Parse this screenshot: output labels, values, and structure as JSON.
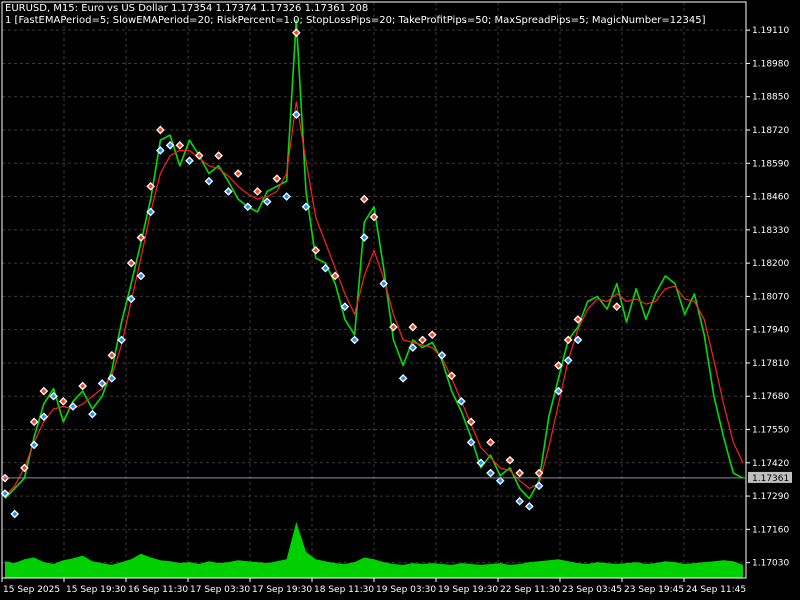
{
  "window": {
    "header_line1": "EURUSD, M15:  Euro vs US Dollar  1.17354 1.17374 1.17326 1.17361  208",
    "header_line2": "1 [FastEMAPeriod=5; SlowEMAPeriod=20; RiskPercent=1.0; StopLossPips=20; TakeProfitPips=50; MaxSpreadPips=5; MagicNumber=12345]"
  },
  "colors": {
    "background": "#000000",
    "grid": "#3a3a3a",
    "price_line": "#00e000",
    "ema_line": "#ff2020",
    "volume": "#00d000",
    "buy_marker": "#1e90ff",
    "sell_marker": "#ff4020",
    "bid_line": "#8a8ea8",
    "price_tag": "#c0c0c0"
  },
  "chart_data": {
    "type": "line",
    "symbol": "EURUSD",
    "timeframe": "M15",
    "description": "Euro vs US Dollar",
    "ohlc_current": {
      "open": 1.17354,
      "high": 1.17374,
      "low": 1.17326,
      "close": 1.17361,
      "volume": 208
    },
    "current_price_label": "1.17361",
    "current_price": 1.17361,
    "ylim": [
      1.1697,
      1.1922
    ],
    "y_ticks": [
      1.1911,
      1.1898,
      1.1885,
      1.1872,
      1.1859,
      1.1846,
      1.1833,
      1.182,
      1.1807,
      1.1794,
      1.1781,
      1.1768,
      1.1755,
      1.1742,
      1.1729,
      1.1716,
      1.1703
    ],
    "y_tick_labels": [
      "1.19110",
      "1.18980",
      "1.18850",
      "1.18720",
      "1.18590",
      "1.18460",
      "1.18330",
      "1.18200",
      "1.18070",
      "1.17940",
      "1.17810",
      "1.17680",
      "1.17550",
      "1.17420",
      "1.17290",
      "1.17160",
      "1.17030"
    ],
    "x_tick_labels": [
      "15 Sep 2025",
      "15 Sep 19:30",
      "16 Sep 11:30",
      "17 Sep 03:30",
      "17 Sep 19:30",
      "18 Sep 11:30",
      "19 Sep 03:30",
      "19 Sep 19:30",
      "22 Sep 11:30",
      "23 Sep 03:45",
      "23 Sep 19:45",
      "24 Sep 11:45"
    ],
    "grid": true,
    "series": [
      {
        "key": "price",
        "values": [
          1.1728,
          1.1732,
          1.1736,
          1.1752,
          1.1765,
          1.1771,
          1.1758,
          1.1766,
          1.177,
          1.1763,
          1.1768,
          1.1778,
          1.1797,
          1.1812,
          1.1828,
          1.1845,
          1.1868,
          1.187,
          1.1858,
          1.1868,
          1.1862,
          1.1855,
          1.1858,
          1.1852,
          1.1845,
          1.1842,
          1.184,
          1.1848,
          1.185,
          1.1852,
          1.1915,
          1.1848,
          1.1822,
          1.182,
          1.1812,
          1.1798,
          1.1792,
          1.1836,
          1.1842,
          1.1818,
          1.179,
          1.178,
          1.179,
          1.1787,
          1.1789,
          1.1782,
          1.177,
          1.1762,
          1.1752,
          1.174,
          1.1745,
          1.1737,
          1.174,
          1.1732,
          1.1728,
          1.1735,
          1.176,
          1.1775,
          1.179,
          1.1795,
          1.1805,
          1.1807,
          1.1802,
          1.1812,
          1.1797,
          1.181,
          1.1798,
          1.1808,
          1.1815,
          1.1812,
          1.18,
          1.1808,
          1.1792,
          1.1768,
          1.1752,
          1.1738,
          1.1736
        ]
      },
      {
        "key": "ema",
        "values": [
          1.1729,
          1.1733,
          1.174,
          1.175,
          1.1758,
          1.1763,
          1.1764,
          1.1763,
          1.1765,
          1.1768,
          1.1771,
          1.1776,
          1.1788,
          1.1805,
          1.1822,
          1.184,
          1.1855,
          1.1862,
          1.1864,
          1.1864,
          1.1861,
          1.1858,
          1.1857,
          1.1854,
          1.185,
          1.1847,
          1.1845,
          1.1846,
          1.1848,
          1.1855,
          1.1883,
          1.186,
          1.1838,
          1.1828,
          1.1818,
          1.1808,
          1.18,
          1.1815,
          1.1825,
          1.1814,
          1.18,
          1.179,
          1.1789,
          1.1788,
          1.1787,
          1.1783,
          1.1775,
          1.1766,
          1.1757,
          1.1748,
          1.1744,
          1.174,
          1.1739,
          1.1735,
          1.1732,
          1.1734,
          1.1748,
          1.1765,
          1.1782,
          1.1794,
          1.1802,
          1.1806,
          1.1805,
          1.1808,
          1.1805,
          1.1806,
          1.1804,
          1.1805,
          1.181,
          1.1811,
          1.1806,
          1.1805,
          1.1798,
          1.1782,
          1.1765,
          1.175,
          1.1742
        ]
      }
    ],
    "volume": [
      18,
      16,
      20,
      22,
      17,
      15,
      19,
      21,
      24,
      18,
      16,
      14,
      17,
      20,
      26,
      22,
      19,
      18,
      16,
      17,
      15,
      18,
      16,
      17,
      19,
      18,
      17,
      16,
      18,
      20,
      60,
      28,
      20,
      18,
      16,
      15,
      17,
      22,
      20,
      17,
      15,
      14,
      16,
      15,
      16,
      15,
      14,
      16,
      15,
      14,
      15,
      16,
      14,
      15,
      17,
      18,
      19,
      20,
      18,
      16,
      15,
      17,
      16,
      15,
      16,
      17,
      15,
      16,
      18,
      17,
      15,
      16,
      17,
      18,
      19,
      18,
      14
    ],
    "signals": {
      "buy": [
        [
          0,
          1.173
        ],
        [
          1,
          1.1722
        ],
        [
          3,
          1.1749
        ],
        [
          4,
          1.176
        ],
        [
          5,
          1.1768
        ],
        [
          7,
          1.1764
        ],
        [
          9,
          1.1761
        ],
        [
          10,
          1.1773
        ],
        [
          11,
          1.1775
        ],
        [
          12,
          1.179
        ],
        [
          13,
          1.1806
        ],
        [
          14,
          1.1815
        ],
        [
          15,
          1.184
        ],
        [
          16,
          1.1864
        ],
        [
          17,
          1.1866
        ],
        [
          19,
          1.186
        ],
        [
          21,
          1.1852
        ],
        [
          23,
          1.1848
        ],
        [
          25,
          1.1842
        ],
        [
          27,
          1.1844
        ],
        [
          29,
          1.1846
        ],
        [
          30,
          1.1878
        ],
        [
          31,
          1.1842
        ],
        [
          33,
          1.1818
        ],
        [
          35,
          1.1803
        ],
        [
          36,
          1.179
        ],
        [
          37,
          1.183
        ],
        [
          39,
          1.1812
        ],
        [
          41,
          1.1775
        ],
        [
          42,
          1.1787
        ],
        [
          45,
          1.1784
        ],
        [
          47,
          1.1766
        ],
        [
          48,
          1.175
        ],
        [
          49,
          1.1742
        ],
        [
          50,
          1.1738
        ],
        [
          51,
          1.1735
        ],
        [
          53,
          1.1727
        ],
        [
          54,
          1.1725
        ],
        [
          55,
          1.1733
        ],
        [
          57,
          1.177
        ],
        [
          58,
          1.1782
        ],
        [
          59,
          1.179
        ]
      ],
      "sell": [
        [
          0,
          1.1736
        ],
        [
          2,
          1.174
        ],
        [
          3,
          1.1758
        ],
        [
          4,
          1.177
        ],
        [
          6,
          1.1766
        ],
        [
          8,
          1.1772
        ],
        [
          11,
          1.1784
        ],
        [
          13,
          1.182
        ],
        [
          14,
          1.183
        ],
        [
          15,
          1.185
        ],
        [
          16,
          1.1872
        ],
        [
          18,
          1.1866
        ],
        [
          20,
          1.1862
        ],
        [
          22,
          1.1862
        ],
        [
          24,
          1.1855
        ],
        [
          26,
          1.1848
        ],
        [
          28,
          1.1853
        ],
        [
          30,
          1.191
        ],
        [
          32,
          1.1825
        ],
        [
          34,
          1.1815
        ],
        [
          37,
          1.1845
        ],
        [
          38,
          1.1838
        ],
        [
          40,
          1.1795
        ],
        [
          42,
          1.1795
        ],
        [
          43,
          1.179
        ],
        [
          44,
          1.1792
        ],
        [
          46,
          1.1776
        ],
        [
          48,
          1.1758
        ],
        [
          50,
          1.175
        ],
        [
          52,
          1.1743
        ],
        [
          53,
          1.1738
        ],
        [
          55,
          1.1738
        ],
        [
          57,
          1.178
        ],
        [
          58,
          1.179
        ],
        [
          59,
          1.1798
        ],
        [
          63,
          1.1803
        ]
      ]
    }
  }
}
